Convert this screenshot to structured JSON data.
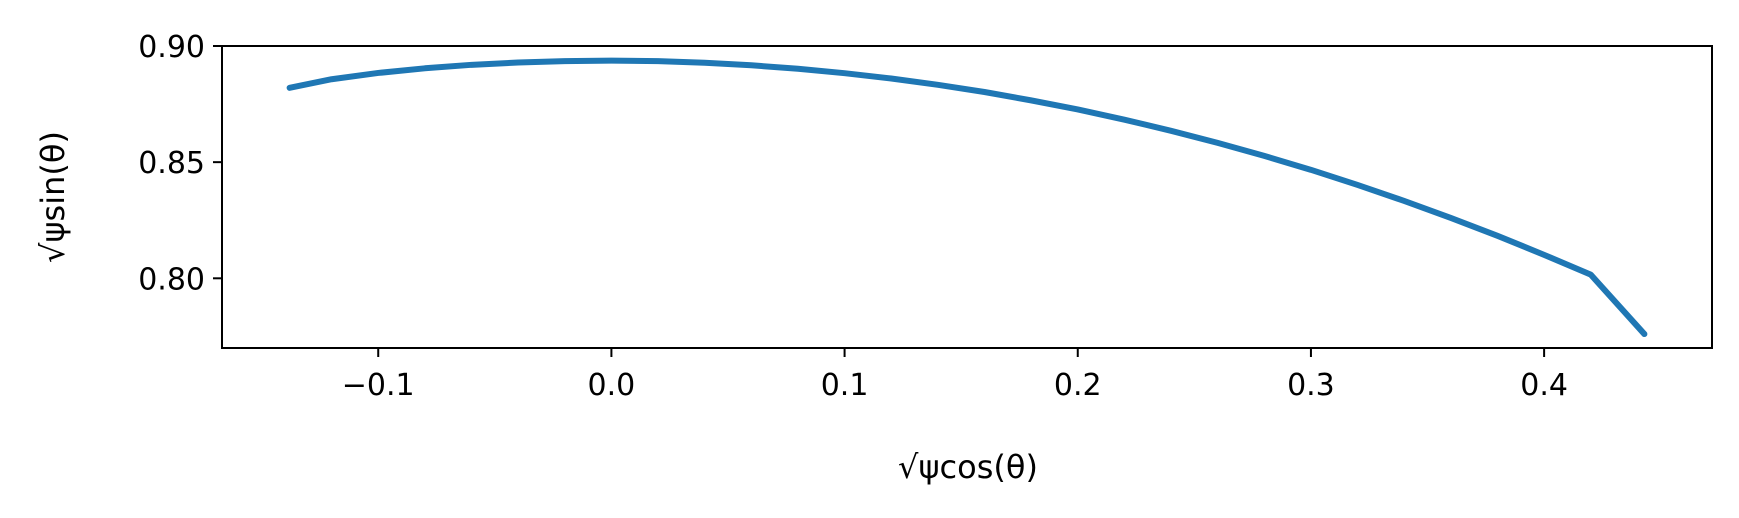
{
  "chart_data": {
    "type": "line",
    "title": "",
    "xlabel": "√ψcos(θ)",
    "ylabel": "√ψsin(θ)",
    "xlim": [
      -0.167,
      0.472
    ],
    "ylim": [
      0.77,
      0.9
    ],
    "x_ticks": [
      -0.1,
      0.0,
      0.1,
      0.2,
      0.3,
      0.4
    ],
    "x_tick_labels": [
      "−0.1",
      "0.0",
      "0.1",
      "0.2",
      "0.3",
      "0.4"
    ],
    "y_ticks": [
      0.8,
      0.85,
      0.9
    ],
    "y_tick_labels": [
      "0.80",
      "0.85",
      "0.90"
    ],
    "grid": false,
    "series": [
      {
        "color": "#1f77b4",
        "x": [
          -0.138,
          -0.12,
          -0.1,
          -0.08,
          -0.06,
          -0.04,
          -0.02,
          0.0,
          0.02,
          0.04,
          0.06,
          0.08,
          0.1,
          0.12,
          0.14,
          0.16,
          0.18,
          0.2,
          0.22,
          0.24,
          0.26,
          0.28,
          0.3,
          0.32,
          0.34,
          0.36,
          0.38,
          0.4,
          0.42,
          0.443
        ],
        "y": [
          0.882,
          0.8857,
          0.8884,
          0.8904,
          0.8919,
          0.8929,
          0.8935,
          0.8937,
          0.8935,
          0.8928,
          0.8917,
          0.8902,
          0.8883,
          0.886,
          0.8833,
          0.8802,
          0.8766,
          0.8727,
          0.8683,
          0.8635,
          0.8583,
          0.8527,
          0.8467,
          0.8402,
          0.8333,
          0.826,
          0.8183,
          0.8101,
          0.8016,
          0.776
        ]
      }
    ]
  }
}
